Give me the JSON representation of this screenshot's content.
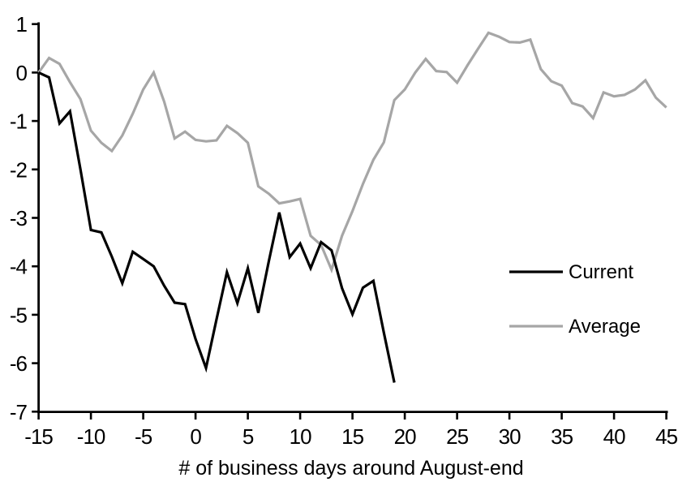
{
  "chart_data": {
    "type": "line",
    "title": "",
    "xlabel": "# of business days around August-end",
    "ylabel": "",
    "grid": false,
    "legend_position": "middle-right",
    "x_axis": {
      "min": -15,
      "max": 45,
      "tick_step": 5,
      "tick_labels": [
        "-15",
        "-10",
        "-5",
        "0",
        "5",
        "10",
        "15",
        "20",
        "25",
        "30",
        "35",
        "40",
        "45"
      ]
    },
    "y_axis": {
      "min": -7,
      "max": 1,
      "tick_step": 1,
      "tick_labels": [
        "1",
        "0",
        "-1",
        "-2",
        "-3",
        "-4",
        "-5",
        "-6",
        "-7"
      ]
    },
    "series": [
      {
        "name": "Current",
        "color": "#000000",
        "x": [
          -15,
          -14,
          -13,
          -12,
          -11,
          -10,
          -9,
          -8,
          -7,
          -6,
          -5,
          -4,
          -3,
          -2,
          -1,
          0,
          1,
          2,
          3,
          4,
          5,
          6,
          7,
          8,
          9,
          10,
          11,
          12,
          13,
          14,
          15,
          16,
          17,
          18,
          19
        ],
        "values": [
          0,
          -0.1,
          -1.05,
          -0.8,
          -2.0,
          -3.25,
          -3.3,
          -3.8,
          -4.35,
          -3.7,
          -3.85,
          -4.0,
          -4.4,
          -4.75,
          -4.78,
          -5.5,
          -6.1,
          -5.1,
          -4.12,
          -4.76,
          -4.04,
          -4.96,
          -3.9,
          -2.89,
          -3.81,
          -3.53,
          -4.04,
          -3.5,
          -3.67,
          -4.45,
          -4.99,
          -4.44,
          -4.3,
          -5.37,
          -6.4
        ]
      },
      {
        "name": "Average",
        "color": "#a6a6a6",
        "x": [
          -15,
          -14,
          -13,
          -12,
          -11,
          -10,
          -9,
          -8,
          -7,
          -6,
          -5,
          -4,
          -3,
          -2,
          -1,
          0,
          1,
          2,
          3,
          4,
          5,
          6,
          7,
          8,
          9,
          10,
          11,
          12,
          13,
          14,
          15,
          16,
          17,
          18,
          19,
          20,
          21,
          22,
          23,
          24,
          25,
          26,
          27,
          28,
          29,
          30,
          31,
          32,
          33,
          34,
          35,
          36,
          37,
          38,
          39,
          40,
          41,
          42,
          43,
          44,
          45
        ],
        "values": [
          0,
          0.3,
          0.18,
          -0.2,
          -0.55,
          -1.2,
          -1.45,
          -1.62,
          -1.3,
          -0.85,
          -0.35,
          0,
          -0.6,
          -1.36,
          -1.22,
          -1.39,
          -1.42,
          -1.4,
          -1.1,
          -1.25,
          -1.45,
          -2.35,
          -2.5,
          -2.7,
          -2.66,
          -2.61,
          -3.37,
          -3.56,
          -4.07,
          -3.37,
          -2.86,
          -2.3,
          -1.8,
          -1.44,
          -0.57,
          -0.35,
          0,
          0.28,
          0.03,
          0.01,
          -0.21,
          0.15,
          0.49,
          0.82,
          0.74,
          0.63,
          0.62,
          0.68,
          0.07,
          -0.18,
          -0.27,
          -0.63,
          -0.7,
          -0.94,
          -0.41,
          -0.49,
          -0.46,
          -0.35,
          -0.16,
          -0.52,
          -0.72
        ]
      }
    ],
    "colors": {
      "axis": "#000000",
      "background": "#ffffff"
    }
  }
}
